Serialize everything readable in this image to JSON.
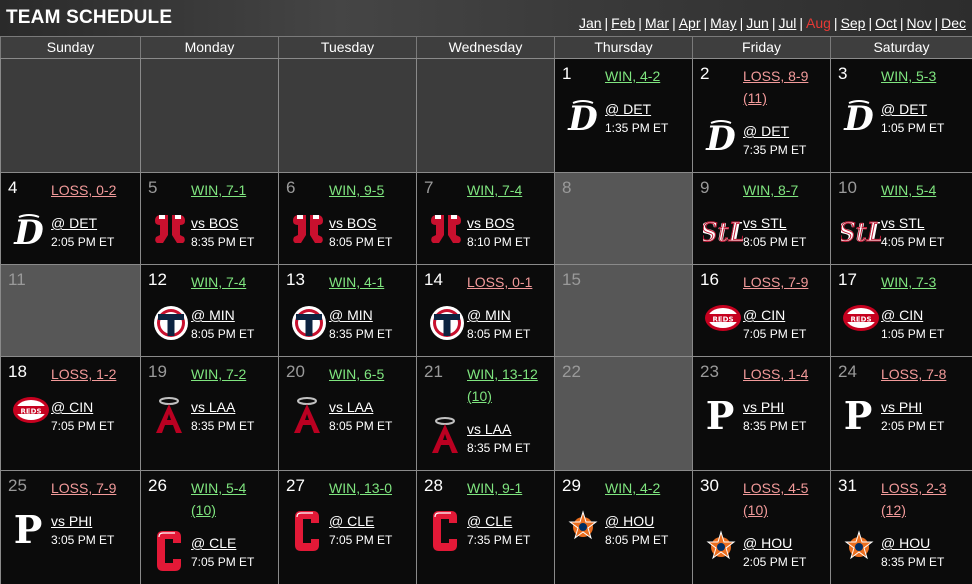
{
  "title": "TEAM SCHEDULE",
  "months": [
    {
      "label": "Jan",
      "current": false
    },
    {
      "label": "Feb",
      "current": false
    },
    {
      "label": "Mar",
      "current": false
    },
    {
      "label": "Apr",
      "current": false
    },
    {
      "label": "May",
      "current": false
    },
    {
      "label": "Jun",
      "current": false
    },
    {
      "label": "Jul",
      "current": false
    },
    {
      "label": "Aug",
      "current": true
    },
    {
      "label": "Sep",
      "current": false
    },
    {
      "label": "Oct",
      "current": false
    },
    {
      "label": "Nov",
      "current": false
    },
    {
      "label": "Dec",
      "current": false
    }
  ],
  "month_separator": "|",
  "weekdays": [
    "Sunday",
    "Monday",
    "Tuesday",
    "Wednesday",
    "Thursday",
    "Friday",
    "Saturday"
  ],
  "colors": {
    "win": "#7fe57f",
    "loss": "#f29a9a",
    "current_month": "#e53935"
  },
  "weeks": [
    [
      null,
      null,
      null,
      null,
      {
        "day": "1",
        "result": "WIN, 4-2",
        "outcome": "win",
        "opponent": "@ DET",
        "time": "1:35 PM ET",
        "logo": "tigers-logo-icon"
      },
      {
        "day": "2",
        "result": "LOSS, 8-9 (11)",
        "outcome": "loss",
        "opponent": "@ DET",
        "time": "7:35 PM ET",
        "logo": "tigers-logo-icon"
      },
      {
        "day": "3",
        "result": "WIN, 5-3",
        "outcome": "win",
        "opponent": "@ DET",
        "time": "1:05 PM ET",
        "logo": "tigers-logo-icon"
      }
    ],
    [
      {
        "day": "4",
        "result": "LOSS, 0-2",
        "outcome": "loss",
        "opponent": "@ DET",
        "time": "2:05 PM ET",
        "logo": "tigers-logo-icon"
      },
      {
        "day": "5",
        "result": "WIN, 7-1",
        "outcome": "win",
        "opponent": "vs BOS",
        "time": "8:35 PM ET",
        "logo": "red-sox-logo-icon",
        "dim": true
      },
      {
        "day": "6",
        "result": "WIN, 9-5",
        "outcome": "win",
        "opponent": "vs BOS",
        "time": "8:05 PM ET",
        "logo": "red-sox-logo-icon",
        "dim": true
      },
      {
        "day": "7",
        "result": "WIN, 7-4",
        "outcome": "win",
        "opponent": "vs BOS",
        "time": "8:10 PM ET",
        "logo": "red-sox-logo-icon",
        "dim": true
      },
      {
        "day": "8",
        "off": true
      },
      {
        "day": "9",
        "result": "WIN, 8-7",
        "outcome": "win",
        "opponent": "vs STL",
        "time": "8:05 PM ET",
        "logo": "cardinals-logo-icon",
        "dim": true
      },
      {
        "day": "10",
        "result": "WIN, 5-4",
        "outcome": "win",
        "opponent": "vs STL",
        "time": "4:05 PM ET",
        "logo": "cardinals-logo-icon",
        "dim": true
      }
    ],
    [
      {
        "day": "11",
        "off": true
      },
      {
        "day": "12",
        "result": "WIN, 7-4",
        "outcome": "win",
        "opponent": "@ MIN",
        "time": "8:05 PM ET",
        "logo": "twins-logo-icon"
      },
      {
        "day": "13",
        "result": "WIN, 4-1",
        "outcome": "win",
        "opponent": "@ MIN",
        "time": "8:35 PM ET",
        "logo": "twins-logo-icon"
      },
      {
        "day": "14",
        "result": "LOSS, 0-1",
        "outcome": "loss",
        "opponent": "@ MIN",
        "time": "8:05 PM ET",
        "logo": "twins-logo-icon"
      },
      {
        "day": "15",
        "off": true
      },
      {
        "day": "16",
        "result": "LOSS, 7-9",
        "outcome": "loss",
        "opponent": "@ CIN",
        "time": "7:05 PM ET",
        "logo": "reds-logo-icon"
      },
      {
        "day": "17",
        "result": "WIN, 7-3",
        "outcome": "win",
        "opponent": "@ CIN",
        "time": "1:05 PM ET",
        "logo": "reds-logo-icon"
      }
    ],
    [
      {
        "day": "18",
        "result": "LOSS, 1-2",
        "outcome": "loss",
        "opponent": "@ CIN",
        "time": "7:05 PM ET",
        "logo": "reds-logo-icon"
      },
      {
        "day": "19",
        "result": "WIN, 7-2",
        "outcome": "win",
        "opponent": "vs LAA",
        "time": "8:35 PM ET",
        "logo": "angels-logo-icon",
        "dim": true
      },
      {
        "day": "20",
        "result": "WIN, 6-5",
        "outcome": "win",
        "opponent": "vs LAA",
        "time": "8:05 PM ET",
        "logo": "angels-logo-icon",
        "dim": true
      },
      {
        "day": "21",
        "result": "WIN, 13-12 (10)",
        "outcome": "win",
        "opponent": "vs LAA",
        "time": "8:35 PM ET",
        "logo": "angels-logo-icon",
        "dim": true
      },
      {
        "day": "22",
        "off": true
      },
      {
        "day": "23",
        "result": "LOSS, 1-4",
        "outcome": "loss",
        "opponent": "vs PHI",
        "time": "8:35 PM ET",
        "logo": "phillies-logo-icon",
        "dim": true
      },
      {
        "day": "24",
        "result": "LOSS, 7-8",
        "outcome": "loss",
        "opponent": "vs PHI",
        "time": "2:05 PM ET",
        "logo": "phillies-logo-icon",
        "dim": true
      }
    ],
    [
      {
        "day": "25",
        "result": "LOSS, 7-9",
        "outcome": "loss",
        "opponent": "vs PHI",
        "time": "3:05 PM ET",
        "logo": "phillies-logo-icon",
        "dim": true
      },
      {
        "day": "26",
        "result": "WIN, 5-4 (10)",
        "outcome": "win",
        "opponent": "@ CLE",
        "time": "7:05 PM ET",
        "logo": "guardians-logo-icon"
      },
      {
        "day": "27",
        "result": "WIN, 13-0",
        "outcome": "win",
        "opponent": "@ CLE",
        "time": "7:05 PM ET",
        "logo": "guardians-logo-icon"
      },
      {
        "day": "28",
        "result": "WIN, 9-1",
        "outcome": "win",
        "opponent": "@ CLE",
        "time": "7:35 PM ET",
        "logo": "guardians-logo-icon"
      },
      {
        "day": "29",
        "result": "WIN, 4-2",
        "outcome": "win",
        "opponent": "@ HOU",
        "time": "8:05 PM ET",
        "logo": "astros-logo-icon"
      },
      {
        "day": "30",
        "result": "LOSS, 4-5 (10)",
        "outcome": "loss",
        "opponent": "@ HOU",
        "time": "2:05 PM ET",
        "logo": "astros-logo-icon"
      },
      {
        "day": "31",
        "result": "LOSS, 2-3 (12)",
        "outcome": "loss",
        "opponent": "@ HOU",
        "time": "8:35 PM ET",
        "logo": "astros-logo-icon"
      }
    ]
  ]
}
